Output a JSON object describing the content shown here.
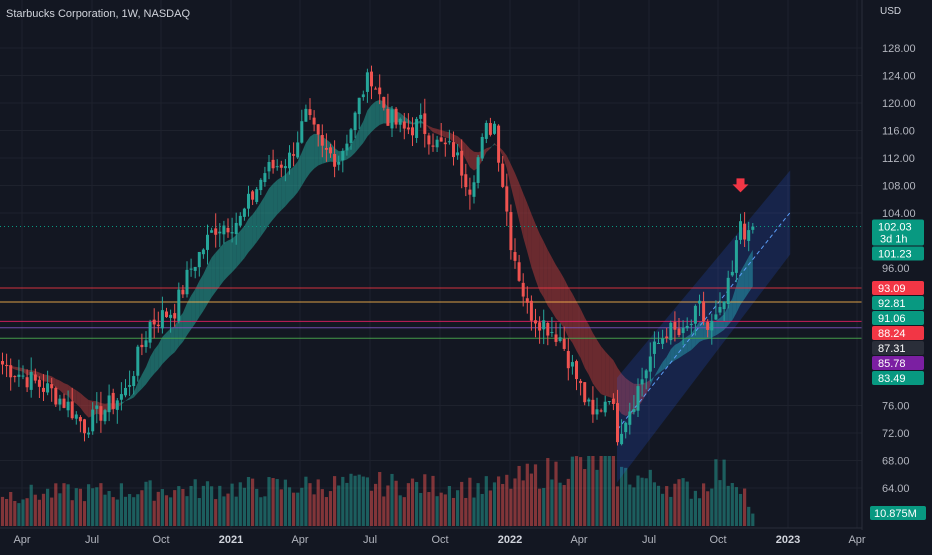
{
  "chart_data": {
    "type": "candlestick",
    "title": "Starbucks Corporation, 1W, NASDAQ",
    "currency": "USD",
    "timeframe": "1W",
    "exchange": "NASDAQ",
    "y_ticks": [
      "128.00",
      "124.00",
      "120.00",
      "116.00",
      "112.00",
      "108.00",
      "104.00",
      "96.00",
      "76.00",
      "72.00",
      "68.00",
      "64.00"
    ],
    "y_tick_values": [
      128,
      124,
      120,
      116,
      112,
      108,
      104,
      96,
      76,
      72,
      68,
      64
    ],
    "x_ticks": [
      "Apr",
      "Jul",
      "Oct",
      "2021",
      "Apr",
      "Jul",
      "Oct",
      "2022",
      "Apr",
      "Jul",
      "Oct",
      "2023",
      "Apr"
    ],
    "bold_x_ticks": [
      "2021",
      "2022",
      "2023"
    ],
    "price_waypoints": [
      {
        "i": 0,
        "v": 82
      },
      {
        "i": 6,
        "v": 80
      },
      {
        "i": 12,
        "v": 78
      },
      {
        "i": 16,
        "v": 76
      },
      {
        "i": 20,
        "v": 73
      },
      {
        "i": 26,
        "v": 76
      },
      {
        "i": 30,
        "v": 78
      },
      {
        "i": 36,
        "v": 88
      },
      {
        "i": 42,
        "v": 90
      },
      {
        "i": 46,
        "v": 96
      },
      {
        "i": 52,
        "v": 102
      },
      {
        "i": 58,
        "v": 103
      },
      {
        "i": 64,
        "v": 110
      },
      {
        "i": 70,
        "v": 112
      },
      {
        "i": 74,
        "v": 118
      },
      {
        "i": 78,
        "v": 113
      },
      {
        "i": 82,
        "v": 112
      },
      {
        "i": 86,
        "v": 118
      },
      {
        "i": 88,
        "v": 122
      },
      {
        "i": 90,
        "v": 124
      },
      {
        "i": 94,
        "v": 118
      },
      {
        "i": 98,
        "v": 116
      },
      {
        "i": 102,
        "v": 117
      },
      {
        "i": 106,
        "v": 114
      },
      {
        "i": 110,
        "v": 113
      },
      {
        "i": 114,
        "v": 108
      },
      {
        "i": 118,
        "v": 116
      },
      {
        "i": 120,
        "v": 117
      },
      {
        "i": 124,
        "v": 100
      },
      {
        "i": 128,
        "v": 90
      },
      {
        "i": 132,
        "v": 88
      },
      {
        "i": 136,
        "v": 86
      },
      {
        "i": 140,
        "v": 80
      },
      {
        "i": 144,
        "v": 74
      },
      {
        "i": 148,
        "v": 78
      },
      {
        "i": 150,
        "v": 72
      },
      {
        "i": 154,
        "v": 77
      },
      {
        "i": 158,
        "v": 83
      },
      {
        "i": 162,
        "v": 87
      },
      {
        "i": 166,
        "v": 86
      },
      {
        "i": 170,
        "v": 90
      },
      {
        "i": 172,
        "v": 87
      },
      {
        "i": 175,
        "v": 89
      },
      {
        "i": 178,
        "v": 95
      },
      {
        "i": 180,
        "v": 103
      },
      {
        "i": 182,
        "v": 100
      },
      {
        "i": 183,
        "v": 102.03
      }
    ],
    "volume_waypoints": [
      {
        "i": 0,
        "v": 0.45
      },
      {
        "i": 30,
        "v": 0.5
      },
      {
        "i": 60,
        "v": 0.55
      },
      {
        "i": 90,
        "v": 0.6
      },
      {
        "i": 120,
        "v": 0.55
      },
      {
        "i": 128,
        "v": 0.7
      },
      {
        "i": 146,
        "v": 0.95
      },
      {
        "i": 150,
        "v": 0.75
      },
      {
        "i": 170,
        "v": 0.5
      },
      {
        "i": 174,
        "v": 0.8
      },
      {
        "i": 180,
        "v": 0.65
      },
      {
        "i": 183,
        "v": 0.15
      }
    ],
    "horizontal_levels": [
      {
        "value": 93.09,
        "label": "93.09",
        "color": "#f23645"
      },
      {
        "value": 91.06,
        "label": "91.06",
        "color": "#ffb74d"
      },
      {
        "value": 88.24,
        "label": "88.24",
        "color": "#e91e63"
      },
      {
        "value": 87.31,
        "label": "87.31",
        "color": "#7e57c2"
      },
      {
        "value": 85.78,
        "label": "85.78",
        "color": "#4caf50"
      }
    ],
    "price_labels": [
      {
        "value": 102.03,
        "text": "102.03",
        "sub": "3d 1h",
        "color": "#089981",
        "role": "last-price"
      },
      {
        "value": 101.23,
        "text": "101.23",
        "color": "#089981"
      },
      {
        "value": 93.09,
        "text": "93.09",
        "color": "#f23645"
      },
      {
        "value": 92.81,
        "text": "92.81",
        "color": "#089981"
      },
      {
        "value": 91.06,
        "text": "91.06",
        "color": "#089981"
      },
      {
        "value": 88.24,
        "text": "88.24",
        "color": "#f23645"
      },
      {
        "value": 87.31,
        "text": "87.31",
        "color": "#2a2e39"
      },
      {
        "value": 85.78,
        "text": "85.78",
        "color": "#7b1fa2"
      },
      {
        "value": 83.49,
        "text": "83.49",
        "color": "#089981"
      }
    ],
    "volume_label": "10.875M",
    "channel": {
      "start_index": 150,
      "end_index": 192,
      "start_low": 65,
      "start_high": 80,
      "end_low": 98,
      "end_high": 110
    },
    "arrow_marker": {
      "index": 180,
      "value": 107
    },
    "colors": {
      "up": "#26a69a",
      "down": "#ef5350",
      "ribbon_up": "#26a69a",
      "ribbon_down": "#b23a3a",
      "channel": "#2962ff",
      "background": "#131722"
    }
  }
}
